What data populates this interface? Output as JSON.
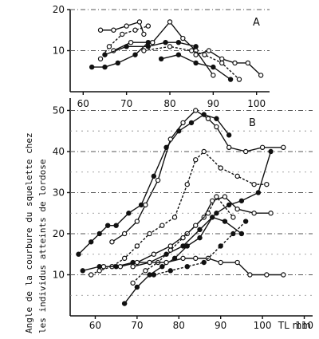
{
  "y_axis_label": {
    "line1": "Angle de la courbure du squelette chez",
    "line2": "les individus atteints de lordose"
  },
  "chart_data": [
    {
      "type": "line",
      "panel": "A",
      "xlim": [
        57,
        103
      ],
      "ylim": [
        0,
        20
      ],
      "xticks": [
        60,
        70,
        80,
        90,
        100
      ],
      "yticks": [
        10,
        20
      ],
      "series": [
        {
          "marker": "open",
          "x": [
            64,
            67,
            70,
            73,
            74
          ],
          "y": [
            15,
            15,
            16,
            17,
            14
          ]
        },
        {
          "marker": "filled",
          "x": [
            62,
            65,
            68,
            72,
            75
          ],
          "y": [
            6,
            6,
            7,
            9,
            12
          ]
        },
        {
          "marker": "open",
          "x": [
            64,
            66,
            69,
            72,
            75
          ],
          "y": [
            8,
            11,
            14,
            15,
            16
          ]
        },
        {
          "marker": "open",
          "x": [
            67,
            71,
            76,
            80,
            83,
            86,
            90
          ],
          "y": [
            10,
            12,
            12,
            17,
            13,
            10,
            4
          ]
        },
        {
          "marker": "filled",
          "x": [
            65,
            70,
            75,
            79,
            82,
            86
          ],
          "y": [
            9,
            11,
            11,
            12,
            12,
            11
          ]
        },
        {
          "marker": "open",
          "x": [
            74,
            80,
            85,
            88,
            92,
            96
          ],
          "y": [
            10,
            11,
            10,
            9,
            7,
            3
          ]
        },
        {
          "marker": "filled",
          "x": [
            78,
            82,
            86,
            90,
            94
          ],
          "y": [
            8,
            9,
            7,
            6,
            3
          ]
        },
        {
          "marker": "open",
          "x": [
            86,
            89,
            92,
            95,
            98,
            101
          ],
          "y": [
            9,
            10,
            8,
            7,
            7,
            4
          ]
        }
      ]
    },
    {
      "type": "line",
      "panel": "B",
      "xlim": [
        54,
        112
      ],
      "ylim": [
        0,
        53
      ],
      "xticks": [
        60,
        70,
        80,
        90,
        100,
        110
      ],
      "yticks": [
        10,
        20,
        30,
        40,
        50
      ],
      "xlabel": "TL mm",
      "series": [
        {
          "marker": "filled",
          "x": [
            56,
            59,
            61,
            63,
            65,
            68,
            71,
            74,
            77,
            80,
            83,
            86,
            89,
            92
          ],
          "y": [
            15,
            18,
            20,
            22,
            22,
            25,
            27,
            34,
            41,
            45,
            47,
            49,
            48,
            44
          ]
        },
        {
          "marker": "open",
          "x": [
            64,
            67,
            70,
            72,
            75,
            78,
            81,
            84,
            87,
            89,
            92,
            96,
            100,
            105
          ],
          "y": [
            18,
            20,
            23,
            27,
            33,
            43,
            47,
            50,
            48,
            46,
            41,
            40,
            41,
            41
          ]
        },
        {
          "marker": "open",
          "x": [
            59,
            61,
            64,
            67,
            70,
            73,
            76,
            79,
            82,
            84,
            86,
            90,
            94,
            98,
            101
          ],
          "y": [
            10,
            11,
            12,
            14,
            17,
            20,
            22,
            24,
            32,
            38,
            40,
            36,
            34,
            32,
            32
          ]
        },
        {
          "marker": "filled",
          "x": [
            57,
            61,
            65,
            69,
            73,
            77,
            81,
            85,
            89,
            92,
            95,
            99,
            102
          ],
          "y": [
            11,
            12,
            12,
            13,
            13,
            15,
            17,
            21,
            25,
            27,
            28,
            30,
            40
          ]
        },
        {
          "marker": "open",
          "x": [
            62,
            66,
            70,
            74,
            78,
            82,
            86,
            88,
            91,
            94,
            98,
            102
          ],
          "y": [
            12,
            12,
            13,
            15,
            17,
            20,
            24,
            28,
            29,
            26,
            25,
            25
          ]
        },
        {
          "marker": "open",
          "x": [
            69,
            72,
            75,
            78,
            81,
            84,
            87,
            89,
            93
          ],
          "y": [
            8,
            11,
            13,
            16,
            19,
            22,
            25,
            29,
            24
          ]
        },
        {
          "marker": "filled",
          "x": [
            67,
            70,
            73,
            76,
            79,
            82,
            85,
            88,
            91,
            95
          ],
          "y": [
            3,
            7,
            10,
            12,
            14,
            17,
            19,
            24,
            23,
            20
          ]
        },
        {
          "marker": "open",
          "x": [
            69,
            73,
            77,
            81,
            84,
            87,
            90,
            94,
            97,
            101,
            105
          ],
          "y": [
            12,
            13,
            13,
            14,
            14,
            14,
            13,
            13,
            10,
            10,
            10
          ]
        },
        {
          "marker": "filled",
          "x": [
            74,
            78,
            82,
            86,
            90,
            93,
            96
          ],
          "y": [
            10,
            11,
            12,
            13,
            17,
            20,
            23
          ]
        }
      ]
    }
  ]
}
